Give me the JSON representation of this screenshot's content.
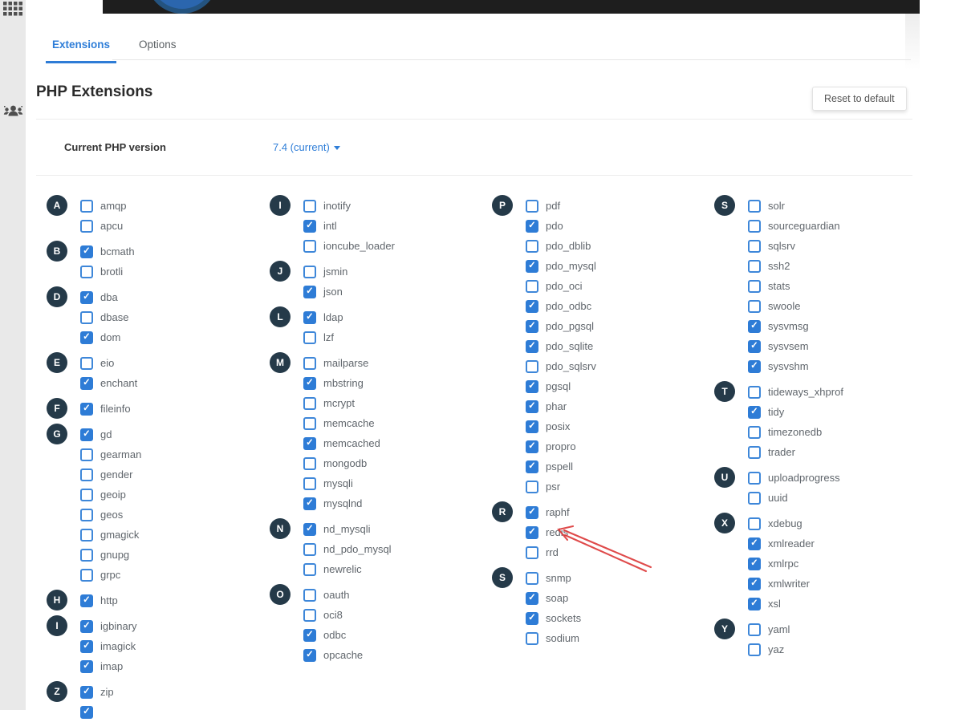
{
  "sidebar": {
    "icons": [
      "apps-grid-icon",
      "user-group-icon"
    ]
  },
  "header": {
    "tabs": [
      {
        "label": "Extensions",
        "active": true
      },
      {
        "label": "Options",
        "active": false
      }
    ]
  },
  "page": {
    "title": "PHP Extensions",
    "reset_button": "Reset to default",
    "current_version_label": "Current PHP version",
    "current_version_value": "7.4 (current)"
  },
  "colors": {
    "accent_blue": "#2e7cd6",
    "link_blue": "#2f7ed8",
    "badge_dark": "#253a49",
    "topbar_dark": "#1e1e1e",
    "annotation_red": "#dd3c3c",
    "label_gray": "#60666c"
  },
  "annotation": {
    "type": "arrow",
    "points_to": "redis"
  },
  "extensions": {
    "columns": [
      {
        "groups": [
          {
            "letter": "A",
            "items": [
              {
                "name": "amqp",
                "checked": false
              },
              {
                "name": "apcu",
                "checked": false
              }
            ]
          },
          {
            "letter": "B",
            "items": [
              {
                "name": "bcmath",
                "checked": true
              },
              {
                "name": "brotli",
                "checked": false
              }
            ]
          },
          {
            "letter": "D",
            "items": [
              {
                "name": "dba",
                "checked": true
              },
              {
                "name": "dbase",
                "checked": false
              },
              {
                "name": "dom",
                "checked": true
              }
            ]
          },
          {
            "letter": "E",
            "items": [
              {
                "name": "eio",
                "checked": false
              },
              {
                "name": "enchant",
                "checked": true
              }
            ]
          },
          {
            "letter": "F",
            "items": [
              {
                "name": "fileinfo",
                "checked": true
              }
            ]
          },
          {
            "letter": "G",
            "items": [
              {
                "name": "gd",
                "checked": true
              },
              {
                "name": "gearman",
                "checked": false
              },
              {
                "name": "gender",
                "checked": false
              },
              {
                "name": "geoip",
                "checked": false
              },
              {
                "name": "geos",
                "checked": false
              },
              {
                "name": "gmagick",
                "checked": false
              },
              {
                "name": "gnupg",
                "checked": false
              },
              {
                "name": "grpc",
                "checked": false
              }
            ]
          },
          {
            "letter": "H",
            "items": [
              {
                "name": "http",
                "checked": true
              }
            ]
          },
          {
            "letter": "I",
            "items": [
              {
                "name": "igbinary",
                "checked": true
              },
              {
                "name": "imagick",
                "checked": true
              },
              {
                "name": "imap",
                "checked": true
              }
            ]
          },
          {
            "letter": "Z",
            "items": [
              {
                "name": "zip",
                "checked": true
              },
              {
                "name": "",
                "checked": true
              }
            ]
          }
        ]
      },
      {
        "groups": [
          {
            "letter": "I",
            "items": [
              {
                "name": "inotify",
                "checked": false
              },
              {
                "name": "intl",
                "checked": true
              },
              {
                "name": "ioncube_loader",
                "checked": false
              }
            ]
          },
          {
            "letter": "J",
            "items": [
              {
                "name": "jsmin",
                "checked": false
              },
              {
                "name": "json",
                "checked": true
              }
            ]
          },
          {
            "letter": "L",
            "items": [
              {
                "name": "ldap",
                "checked": true
              },
              {
                "name": "lzf",
                "checked": false
              }
            ]
          },
          {
            "letter": "M",
            "items": [
              {
                "name": "mailparse",
                "checked": false
              },
              {
                "name": "mbstring",
                "checked": true
              },
              {
                "name": "mcrypt",
                "checked": false
              },
              {
                "name": "memcache",
                "checked": false
              },
              {
                "name": "memcached",
                "checked": true
              },
              {
                "name": "mongodb",
                "checked": false
              },
              {
                "name": "mysqli",
                "checked": false
              },
              {
                "name": "mysqlnd",
                "checked": true
              }
            ]
          },
          {
            "letter": "N",
            "items": [
              {
                "name": "nd_mysqli",
                "checked": true
              },
              {
                "name": "nd_pdo_mysql",
                "checked": false
              },
              {
                "name": "newrelic",
                "checked": false
              }
            ]
          },
          {
            "letter": "O",
            "items": [
              {
                "name": "oauth",
                "checked": false
              },
              {
                "name": "oci8",
                "checked": false
              },
              {
                "name": "odbc",
                "checked": true
              },
              {
                "name": "opcache",
                "checked": true
              }
            ]
          }
        ]
      },
      {
        "groups": [
          {
            "letter": "P",
            "items": [
              {
                "name": "pdf",
                "checked": false
              },
              {
                "name": "pdo",
                "checked": true
              },
              {
                "name": "pdo_dblib",
                "checked": false
              },
              {
                "name": "pdo_mysql",
                "checked": true
              },
              {
                "name": "pdo_oci",
                "checked": false
              },
              {
                "name": "pdo_odbc",
                "checked": true
              },
              {
                "name": "pdo_pgsql",
                "checked": true
              },
              {
                "name": "pdo_sqlite",
                "checked": true
              },
              {
                "name": "pdo_sqlsrv",
                "checked": false
              },
              {
                "name": "pgsql",
                "checked": true
              },
              {
                "name": "phar",
                "checked": true
              },
              {
                "name": "posix",
                "checked": true
              },
              {
                "name": "propro",
                "checked": true
              },
              {
                "name": "pspell",
                "checked": true
              },
              {
                "name": "psr",
                "checked": false
              }
            ]
          },
          {
            "letter": "R",
            "items": [
              {
                "name": "raphf",
                "checked": true
              },
              {
                "name": "redis",
                "checked": true
              },
              {
                "name": "rrd",
                "checked": false
              }
            ]
          },
          {
            "letter": "S",
            "items": [
              {
                "name": "snmp",
                "checked": false
              },
              {
                "name": "soap",
                "checked": true
              },
              {
                "name": "sockets",
                "checked": true
              },
              {
                "name": "sodium",
                "checked": false
              }
            ]
          }
        ]
      },
      {
        "groups": [
          {
            "letter": "S",
            "items": [
              {
                "name": "solr",
                "checked": false
              },
              {
                "name": "sourceguardian",
                "checked": false
              },
              {
                "name": "sqlsrv",
                "checked": false
              },
              {
                "name": "ssh2",
                "checked": false
              },
              {
                "name": "stats",
                "checked": false
              },
              {
                "name": "swoole",
                "checked": false
              },
              {
                "name": "sysvmsg",
                "checked": true
              },
              {
                "name": "sysvsem",
                "checked": true
              },
              {
                "name": "sysvshm",
                "checked": true
              }
            ]
          },
          {
            "letter": "T",
            "items": [
              {
                "name": "tideways_xhprof",
                "checked": false
              },
              {
                "name": "tidy",
                "checked": true
              },
              {
                "name": "timezonedb",
                "checked": false
              },
              {
                "name": "trader",
                "checked": false
              }
            ]
          },
          {
            "letter": "U",
            "items": [
              {
                "name": "uploadprogress",
                "checked": false
              },
              {
                "name": "uuid",
                "checked": false
              }
            ]
          },
          {
            "letter": "X",
            "items": [
              {
                "name": "xdebug",
                "checked": false
              },
              {
                "name": "xmlreader",
                "checked": true
              },
              {
                "name": "xmlrpc",
                "checked": true
              },
              {
                "name": "xmlwriter",
                "checked": true
              },
              {
                "name": "xsl",
                "checked": true
              }
            ]
          },
          {
            "letter": "Y",
            "items": [
              {
                "name": "yaml",
                "checked": false
              },
              {
                "name": "yaz",
                "checked": false
              }
            ]
          }
        ]
      }
    ],
    "column_lefts": [
      58,
      336,
      613,
      890
    ]
  }
}
